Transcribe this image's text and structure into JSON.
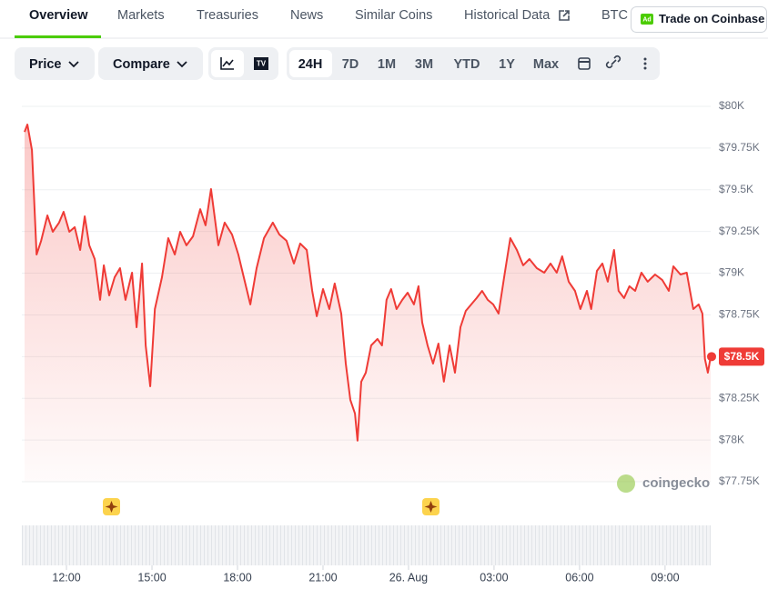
{
  "tabs": [
    "Overview",
    "Markets",
    "Treasuries",
    "News",
    "Similar Coins",
    "Historical Data",
    "BTC"
  ],
  "ad_badge": "Ad",
  "cta": "Trade on Coinbase",
  "toolbar": {
    "price": "Price",
    "compare": "Compare",
    "ranges": [
      "24H",
      "7D",
      "1M",
      "3M",
      "YTD",
      "1Y",
      "Max"
    ]
  },
  "watermark": "coingecko",
  "chart_data": {
    "type": "line",
    "color": "#ef3b36",
    "grid": true,
    "x": [
      10.53,
      10.63,
      10.79,
      10.95,
      11.11,
      11.33,
      11.52,
      11.74,
      11.9,
      12.1,
      12.29,
      12.48,
      12.64,
      12.8,
      12.99,
      13.18,
      13.31,
      13.5,
      13.69,
      13.88,
      14.07,
      14.3,
      14.46,
      14.65,
      14.78,
      14.94,
      15.1,
      15.35,
      15.57,
      15.8,
      15.99,
      16.21,
      16.44,
      16.69,
      16.88,
      17.07,
      17.33,
      17.55,
      17.81,
      18.03,
      18.22,
      18.45,
      18.67,
      18.93,
      19.24,
      19.47,
      19.72,
      19.98,
      20.2,
      20.43,
      20.62,
      20.78,
      21.0,
      21.22,
      21.41,
      21.64,
      21.8,
      21.96,
      22.12,
      22.21,
      22.34,
      22.5,
      22.69,
      22.91,
      23.07,
      23.23,
      23.39,
      23.58,
      23.78,
      23.97,
      24.19,
      24.35,
      24.48,
      24.67,
      24.86,
      25.05,
      25.24,
      25.44,
      25.63,
      25.82,
      26.01,
      26.2,
      26.39,
      26.58,
      26.78,
      26.97,
      27.16,
      27.38,
      27.57,
      27.8,
      28.02,
      28.24,
      28.5,
      28.76,
      28.98,
      29.2,
      29.39,
      29.62,
      29.84,
      30.03,
      30.26,
      30.41,
      30.61,
      30.8,
      30.99,
      31.21,
      31.37,
      31.56,
      31.75,
      31.95,
      32.17,
      32.39,
      32.65,
      32.9,
      33.13,
      33.29,
      33.54,
      33.76,
      33.99,
      34.18,
      34.31,
      34.4,
      34.5,
      34.6
    ],
    "values": [
      79847,
      79891,
      79738,
      79112,
      79194,
      79346,
      79248,
      79303,
      79368,
      79248,
      79276,
      79139,
      79341,
      79167,
      79085,
      78840,
      79047,
      78867,
      78976,
      79030,
      78840,
      79003,
      78676,
      79058,
      78567,
      78322,
      78785,
      78976,
      79210,
      79112,
      79248,
      79167,
      79221,
      79384,
      79287,
      79504,
      79167,
      79303,
      79232,
      79112,
      78976,
      78813,
      79030,
      79210,
      79303,
      79232,
      79194,
      79058,
      79178,
      79139,
      78894,
      78742,
      78905,
      78785,
      78938,
      78758,
      78458,
      78241,
      78159,
      77996,
      78350,
      78404,
      78567,
      78606,
      78567,
      78840,
      78905,
      78785,
      78840,
      78883,
      78813,
      78922,
      78704,
      78567,
      78458,
      78578,
      78350,
      78567,
      78404,
      78676,
      78774,
      78813,
      78851,
      78894,
      78840,
      78813,
      78758,
      79003,
      79210,
      79139,
      79047,
      79085,
      79030,
      79003,
      79058,
      79003,
      79101,
      78949,
      78894,
      78785,
      78894,
      78785,
      79014,
      79058,
      78949,
      79139,
      78894,
      78851,
      78922,
      78894,
      79003,
      78949,
      78992,
      78960,
      78894,
      79041,
      78992,
      79003,
      78785,
      78813,
      78758,
      78486,
      78404,
      78500
    ],
    "xlim": [
      10.53,
      34.6
    ],
    "xticks": [
      {
        "value": 12,
        "label": "12:00"
      },
      {
        "value": 15,
        "label": "15:00"
      },
      {
        "value": 18,
        "label": "18:00"
      },
      {
        "value": 21,
        "label": "21:00"
      },
      {
        "value": 24,
        "label": "26. Aug"
      },
      {
        "value": 27,
        "label": "03:00"
      },
      {
        "value": 30,
        "label": "06:00"
      },
      {
        "value": 33,
        "label": "09:00"
      }
    ],
    "ylim": [
      77750,
      80000
    ],
    "yticks": [
      {
        "value": 80000,
        "label": "$80K"
      },
      {
        "value": 79750,
        "label": "$79.75K"
      },
      {
        "value": 79500,
        "label": "$79.5K"
      },
      {
        "value": 79250,
        "label": "$79.25K"
      },
      {
        "value": 79000,
        "label": "$79K"
      },
      {
        "value": 78750,
        "label": "$78.75K"
      },
      {
        "value": 78500,
        "label": "$78.5K"
      },
      {
        "value": 78250,
        "label": "$78.25K"
      },
      {
        "value": 78000,
        "label": "$78K"
      },
      {
        "value": 77750,
        "label": "$77.75K"
      }
    ],
    "current_price": {
      "value": 78500,
      "label": "$78.5K"
    }
  }
}
